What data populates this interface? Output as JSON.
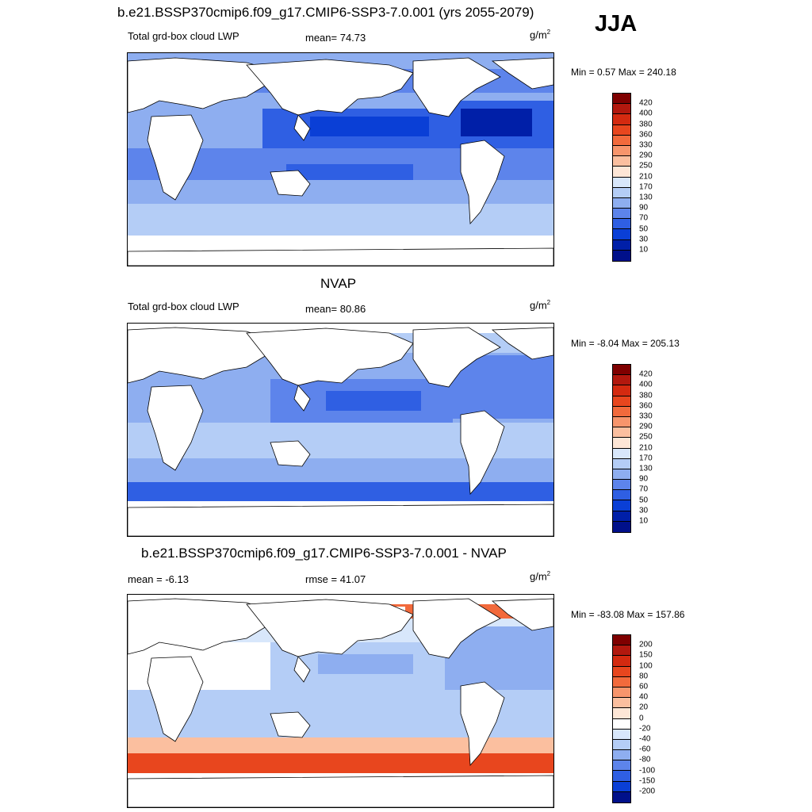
{
  "season": "JJA",
  "panels": [
    {
      "id": "model",
      "title": "b.e21.BSSP370cmip6.f09_g17.CMIP6-SSP3-7.0.001 (yrs 2055-2079)",
      "left_label": "Total grd-box cloud LWP",
      "stat_label": "mean=  74.73",
      "units": "g/m",
      "units_sup": "2",
      "minmax": "Min =   0.57 Max = 240.18",
      "colorbar": {
        "levels": [
          "420",
          "400",
          "380",
          "360",
          "330",
          "290",
          "250",
          "210",
          "170",
          "130",
          "90",
          "70",
          "50",
          "30",
          "10"
        ],
        "colors": [
          "#7f0000",
          "#b2180e",
          "#d42a10",
          "#e8461e",
          "#f26a3c",
          "#f7956c",
          "#fbbf9f",
          "#fde6d6",
          "#d8e7fb",
          "#b4cdf6",
          "#8eaef0",
          "#5d84eb",
          "#2f5fe3",
          "#0a3fd6",
          "#001fa8",
          "#00108a"
        ]
      }
    },
    {
      "id": "obs",
      "title": "NVAP",
      "left_label": "Total grd-box cloud LWP",
      "stat_label": "mean=  80.86",
      "units": "g/m",
      "units_sup": "2",
      "minmax": "Min =  -8.04 Max = 205.13",
      "colorbar": {
        "levels": [
          "420",
          "400",
          "380",
          "360",
          "330",
          "290",
          "250",
          "210",
          "170",
          "130",
          "90",
          "70",
          "50",
          "30",
          "10"
        ],
        "colors": [
          "#7f0000",
          "#b2180e",
          "#d42a10",
          "#e8461e",
          "#f26a3c",
          "#f7956c",
          "#fbbf9f",
          "#fde6d6",
          "#d8e7fb",
          "#b4cdf6",
          "#8eaef0",
          "#5d84eb",
          "#2f5fe3",
          "#0a3fd6",
          "#001fa8",
          "#00108a"
        ]
      }
    },
    {
      "id": "diff",
      "title": "b.e21.BSSP370cmip6.f09_g17.CMIP6-SSP3-7.0.001 - NVAP",
      "left_label": "mean =  -6.13",
      "stat_label": "rmse =  41.07",
      "units": "g/m",
      "units_sup": "2",
      "minmax": "Min = -83.08 Max = 157.86",
      "colorbar": {
        "levels": [
          "200",
          "150",
          "100",
          "80",
          "60",
          "40",
          "20",
          "0",
          "-20",
          "-40",
          "-60",
          "-80",
          "-100",
          "-150",
          "-200"
        ],
        "colors": [
          "#7f0000",
          "#b2180e",
          "#d42a10",
          "#e8461e",
          "#f26a3c",
          "#f7956c",
          "#fbbf9f",
          "#fde6d6",
          "#ffffff",
          "#d8e7fb",
          "#b4cdf6",
          "#8eaef0",
          "#5d84eb",
          "#2f5fe3",
          "#0a3fd6",
          "#00108a"
        ]
      }
    }
  ]
}
